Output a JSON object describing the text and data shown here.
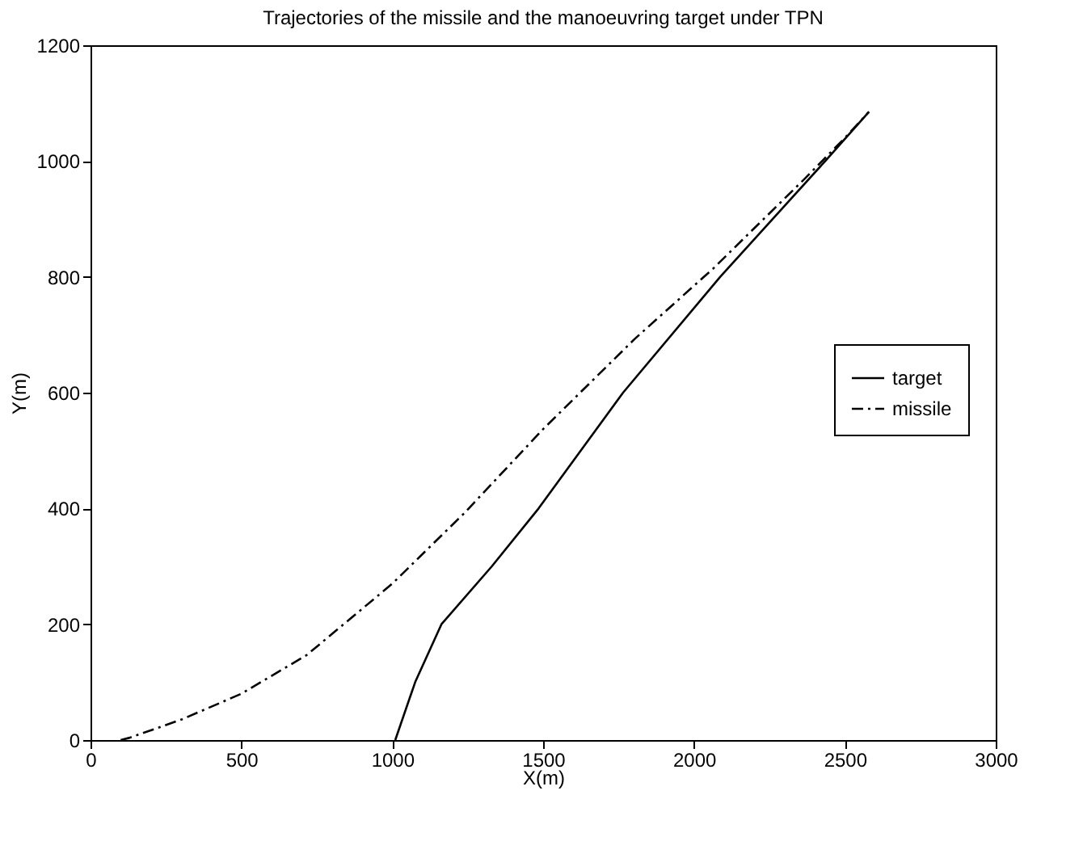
{
  "chart_data": {
    "type": "line",
    "title": "Trajectories of the missile and the manoeuvring target under TPN",
    "xlabel": "X(m)",
    "ylabel": "Y(m)",
    "xlim": [
      0,
      3000
    ],
    "xticks": [
      0,
      500,
      1000,
      1500,
      2000,
      2500,
      3000
    ],
    "ylim": [
      0,
      1200
    ],
    "yticks": [
      0,
      200,
      400,
      600,
      800,
      1000,
      1200
    ],
    "grid": false,
    "legend": "right",
    "marker": "none",
    "series": [
      {
        "name": "target",
        "color": "#000000",
        "line_style": "solid",
        "x": [
          1010,
          1076,
          1163,
          1330,
          1485,
          1765,
          2087,
          2435,
          2580
        ],
        "values": [
          0,
          100,
          200,
          300,
          400,
          600,
          800,
          1000,
          1085
        ]
      },
      {
        "name": "missile",
        "color": "#000000",
        "line_style": "dashed",
        "x": [
          100,
          130,
          304,
          500,
          717,
          1000,
          1239,
          1500,
          1804,
          2065,
          2370,
          2500,
          2580
        ],
        "values": [
          0,
          4,
          36,
          80,
          147,
          270,
          392,
          537,
          693,
          815,
          971,
          1040,
          1085
        ]
      }
    ]
  }
}
